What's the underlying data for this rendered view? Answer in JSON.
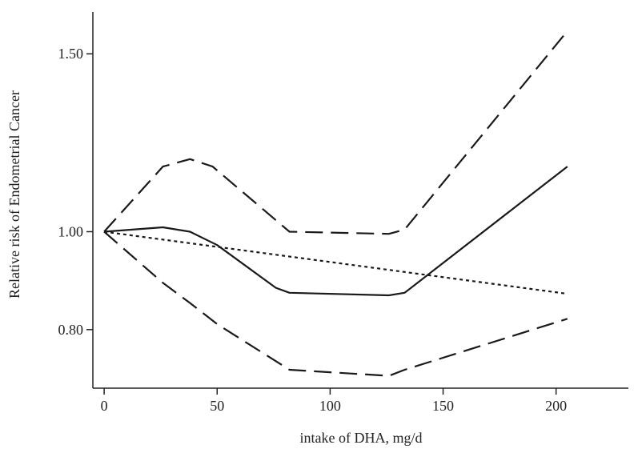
{
  "chart_data": {
    "type": "line",
    "title": "",
    "xlabel": "intake of DHA, mg/d",
    "ylabel": "Relative risk of Endometrial Cancer",
    "xlim": [
      -5,
      232
    ],
    "ylim": [
      0.7,
      1.65
    ],
    "y_scale": "log",
    "grid": false,
    "legend": "none",
    "x_ticks": [
      0,
      50,
      100,
      150,
      200
    ],
    "x_tick_labels": [
      "0",
      "50",
      "100",
      "150",
      "200"
    ],
    "y_ticks": [
      0.8,
      1.0,
      1.5
    ],
    "y_tick_labels": [
      "0.80",
      "1.00",
      "1.50"
    ],
    "series": [
      {
        "style": "solid",
        "x": [
          0,
          26,
          38,
          50,
          76,
          82,
          126,
          133,
          205
        ],
        "y": [
          1.0,
          1.01,
          1.0,
          0.97,
          0.88,
          0.87,
          0.865,
          0.87,
          1.16
        ]
      },
      {
        "style": "dashed",
        "x": [
          0,
          26,
          38,
          48,
          82,
          126,
          133,
          205
        ],
        "y": [
          1.0,
          1.16,
          1.18,
          1.16,
          1.0,
          0.995,
          1.005,
          1.58
        ]
      },
      {
        "style": "dashed",
        "x": [
          0,
          26,
          38,
          50,
          82,
          126,
          133,
          205
        ],
        "y": [
          1.0,
          0.89,
          0.85,
          0.81,
          0.73,
          0.72,
          0.73,
          0.82
        ]
      },
      {
        "style": "dotted",
        "x": [
          0,
          205
        ],
        "y": [
          1.0,
          0.868
        ]
      }
    ]
  }
}
